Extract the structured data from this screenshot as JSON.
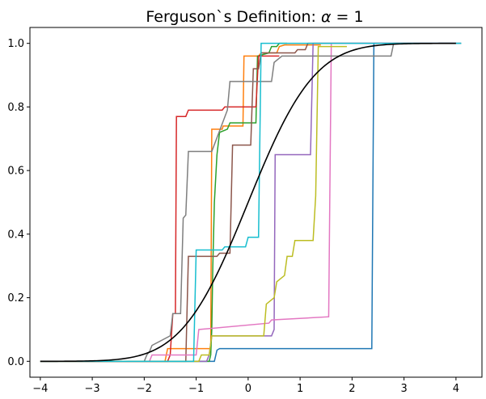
{
  "chart_data": {
    "type": "line",
    "title": "Ferguson`s Definition: α = 1",
    "title_parts": {
      "prefix": "Ferguson`s Definition: ",
      "alpha": "α",
      "suffix": " = 1"
    },
    "xlim": [
      -4.2,
      4.5
    ],
    "ylim": [
      -0.05,
      1.05
    ],
    "x_ticks": [
      -4,
      -3,
      -2,
      -1,
      0,
      1,
      2,
      3,
      4
    ],
    "x_tick_labels": [
      "−4",
      "−3",
      "−2",
      "−1",
      "0",
      "1",
      "2",
      "3",
      "4"
    ],
    "y_ticks": [
      0.0,
      0.2,
      0.4,
      0.6,
      0.8,
      1.0
    ],
    "y_tick_labels": [
      "0.0",
      "0.2",
      "0.4",
      "0.6",
      "0.8",
      "1.0"
    ],
    "grid": false,
    "legend": "none",
    "normal_cdf": {
      "color": "#000000",
      "x_range": [
        -4.0,
        4.0
      ]
    },
    "series": [
      {
        "color": "#1f77b4",
        "x": [
          -4.0,
          -0.65,
          -0.6,
          -0.55,
          2.38,
          2.42,
          4.1
        ],
        "y": [
          0.0,
          0.0,
          0.035,
          0.04,
          0.04,
          1.0,
          1.0
        ]
      },
      {
        "color": "#ff7f0e",
        "x": [
          -4.0,
          -1.6,
          -1.55,
          -0.72,
          -0.7,
          -0.5,
          -0.48,
          -0.1,
          -0.08,
          0.2,
          0.25,
          0.55,
          0.6,
          0.7,
          1.4
        ],
        "y": [
          0.0,
          0.0,
          0.04,
          0.04,
          0.73,
          0.73,
          0.74,
          0.74,
          0.96,
          0.96,
          0.97,
          0.97,
          0.99,
          0.995,
          0.995
        ]
      },
      {
        "color": "#2ca02c",
        "x": [
          -4.0,
          -0.75,
          -0.72,
          -0.7,
          -0.68,
          -0.65,
          -0.6,
          -0.55,
          -0.4,
          -0.35,
          0.15,
          0.18,
          0.4,
          0.45,
          0.55,
          0.6,
          0.75
        ],
        "y": [
          0.0,
          0.0,
          0.02,
          0.1,
          0.3,
          0.5,
          0.65,
          0.72,
          0.73,
          0.75,
          0.75,
          0.96,
          0.97,
          0.99,
          0.99,
          1.0,
          1.0
        ]
      },
      {
        "color": "#d62728",
        "x": [
          -4.0,
          -1.55,
          -1.5,
          -1.45,
          -1.4,
          -1.38,
          -1.2,
          -1.15,
          -1.0,
          -0.95,
          -0.5,
          -0.45,
          0.15,
          0.2,
          0.6
        ],
        "y": [
          0.0,
          0.0,
          0.02,
          0.15,
          0.15,
          0.77,
          0.77,
          0.79,
          0.79,
          0.79,
          0.79,
          0.8,
          0.8,
          0.96,
          0.96
        ]
      },
      {
        "color": "#9467bd",
        "x": [
          -4.0,
          -0.8,
          -0.75,
          -0.7,
          -0.65,
          0.45,
          0.5,
          0.52,
          1.0,
          1.05,
          1.2,
          1.25,
          4.0
        ],
        "y": [
          0.0,
          0.0,
          0.02,
          0.08,
          0.08,
          0.08,
          0.1,
          0.65,
          0.65,
          0.65,
          0.65,
          1.0,
          1.0
        ]
      },
      {
        "color": "#8c564b",
        "x": [
          -4.0,
          -1.2,
          -1.15,
          -0.6,
          -0.55,
          -0.35,
          -0.3,
          0.05,
          0.1,
          0.2,
          0.25,
          0.9,
          0.95,
          1.1,
          1.15,
          4.0
        ],
        "y": [
          0.0,
          0.0,
          0.33,
          0.33,
          0.34,
          0.34,
          0.68,
          0.68,
          0.92,
          0.92,
          0.97,
          0.97,
          0.98,
          0.98,
          1.0,
          1.0
        ]
      },
      {
        "color": "#e377c2",
        "x": [
          -4.0,
          -1.9,
          -1.85,
          -1.8,
          -1.75,
          -1.7,
          -1.0,
          -0.95,
          0.4,
          0.45,
          1.55,
          1.6,
          1.75,
          4.0
        ],
        "y": [
          0.0,
          0.0,
          0.02,
          0.02,
          0.02,
          0.02,
          0.02,
          0.1,
          0.12,
          0.13,
          0.14,
          1.0,
          1.0,
          1.0
        ]
      },
      {
        "color": "#7f7f7f",
        "x": [
          -4.0,
          -2.0,
          -1.95,
          -1.9,
          -1.85,
          -1.5,
          -1.45,
          -1.3,
          -1.25,
          -1.2,
          -1.15,
          -0.75,
          -0.7,
          -0.4,
          -0.35,
          -0.3,
          0.45,
          0.5,
          0.65,
          1.8,
          2.75,
          2.8,
          4.1
        ],
        "y": [
          0.0,
          0.0,
          0.02,
          0.03,
          0.05,
          0.08,
          0.15,
          0.15,
          0.45,
          0.46,
          0.66,
          0.66,
          0.66,
          0.79,
          0.88,
          0.88,
          0.88,
          0.94,
          0.96,
          0.96,
          0.96,
          1.0,
          1.0
        ]
      },
      {
        "color": "#bcbd22",
        "x": [
          -4.0,
          -0.95,
          -0.9,
          -0.75,
          -0.7,
          0.3,
          0.35,
          0.5,
          0.55,
          0.7,
          0.75,
          0.85,
          0.9,
          1.25,
          1.3,
          1.35,
          1.4,
          1.9
        ],
        "y": [
          0.0,
          0.0,
          0.02,
          0.02,
          0.08,
          0.08,
          0.18,
          0.2,
          0.25,
          0.27,
          0.33,
          0.33,
          0.38,
          0.38,
          0.52,
          0.99,
          0.99,
          0.99
        ]
      },
      {
        "color": "#17becf",
        "x": [
          -4.0,
          -1.05,
          -1.0,
          -0.95,
          -0.65,
          -0.5,
          -0.45,
          -0.05,
          0.0,
          0.2,
          0.25,
          0.75,
          0.8,
          4.1
        ],
        "y": [
          0.0,
          0.0,
          0.35,
          0.35,
          0.35,
          0.35,
          0.36,
          0.36,
          0.39,
          0.39,
          1.0,
          1.0,
          1.0,
          1.0
        ]
      }
    ]
  }
}
